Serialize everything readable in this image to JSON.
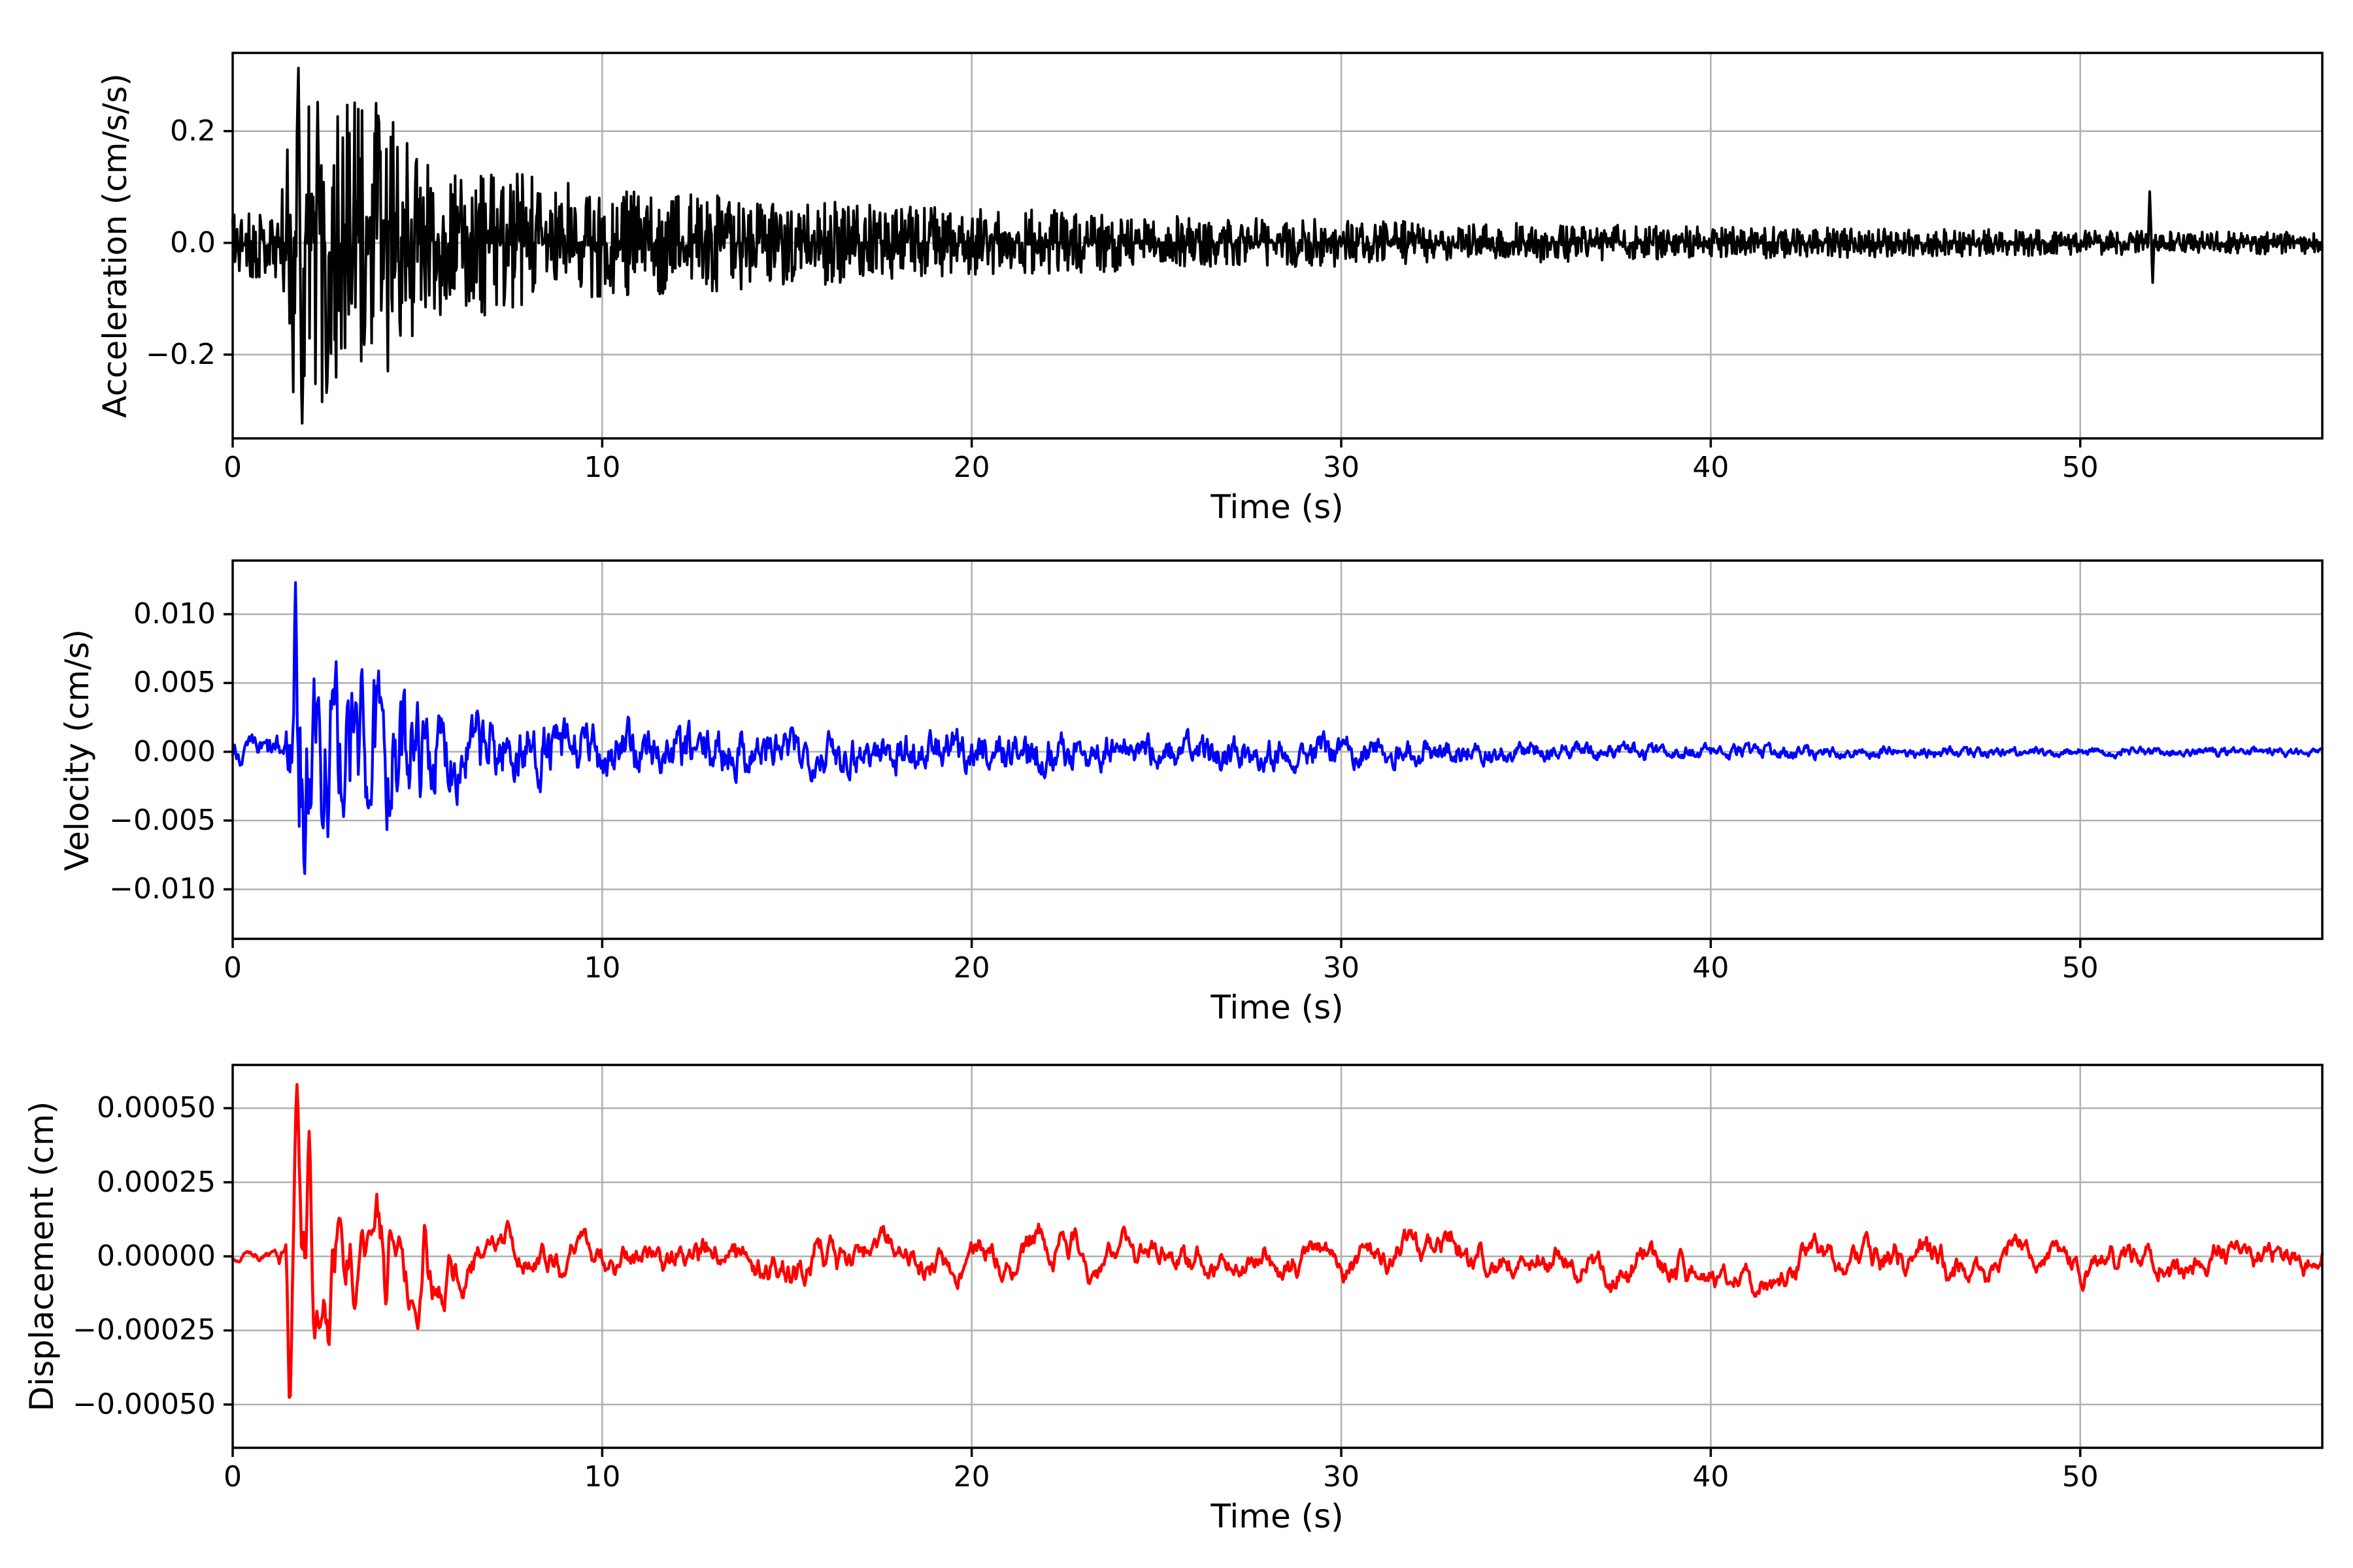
{
  "figure": {
    "background": "#ffffff",
    "grid_color": "#b0b0b0",
    "axes_edge_color": "#000000",
    "n_subplots": 3,
    "kind": "seismogram (acceleration / velocity / displacement vs time)"
  },
  "chart_data": [
    {
      "id": "acceleration",
      "type": "line",
      "xlabel": "Time (s)",
      "ylabel": "Acceleration (cm/s/s)",
      "line_color": "#000000",
      "line_width": 4.0,
      "xlim": [
        0,
        56.55
      ],
      "ylim": [
        -0.35,
        0.34
      ],
      "xticks": [
        0,
        10,
        20,
        30,
        40,
        50
      ],
      "xtick_labels": [
        "0",
        "10",
        "20",
        "30",
        "40",
        "50"
      ],
      "yticks": [
        0.2,
        0.0,
        -0.2
      ],
      "ytick_labels": [
        "0.2",
        "0.0",
        "−0.2"
      ],
      "grid": true,
      "legend": null,
      "description": "High-frequency accelerogram: ambient noise about ±0.06 until 1.4 s, main shock burst peaking +0.30 / −0.33 cm/s/s near 1.8–2.5 s, slow coda decay to about ±0.02 by 56 s, isolated spike +0.09 / −0.07 at 51.9 s",
      "peak": {
        "time": 1.8,
        "max": 0.3,
        "min": -0.33
      },
      "signal": {
        "sample_dt": 0.02,
        "seed": 11,
        "noise": "white",
        "pulse_width": 0.03,
        "pulses": [
          [
            1.78,
            1.0
          ],
          [
            1.88,
            -1.0
          ],
          [
            2.3,
            0.9
          ],
          [
            2.55,
            -0.95
          ],
          [
            3.95,
            0.9
          ]
        ],
        "spike_width": 0.028,
        "spikes": [
          [
            51.88,
            0.092
          ],
          [
            51.96,
            -0.068
          ]
        ],
        "envelope": [
          [
            0,
            0.06
          ],
          [
            1.2,
            0.065
          ],
          [
            1.4,
            0.12
          ],
          [
            1.6,
            0.28
          ],
          [
            1.75,
            0.31
          ],
          [
            1.95,
            0.33
          ],
          [
            2.2,
            0.27
          ],
          [
            2.5,
            0.3
          ],
          [
            2.8,
            0.27
          ],
          [
            3.1,
            0.25
          ],
          [
            3.4,
            0.28
          ],
          [
            3.7,
            0.24
          ],
          [
            4.0,
            0.26
          ],
          [
            4.3,
            0.22
          ],
          [
            4.6,
            0.19
          ],
          [
            5.0,
            0.16
          ],
          [
            5.4,
            0.14
          ],
          [
            5.8,
            0.125
          ],
          [
            6.3,
            0.12
          ],
          [
            6.8,
            0.13
          ],
          [
            7.3,
            0.12
          ],
          [
            7.8,
            0.13
          ],
          [
            8.3,
            0.12
          ],
          [
            8.8,
            0.11
          ],
          [
            9.3,
            0.105
          ],
          [
            10,
            0.1
          ],
          [
            11,
            0.095
          ],
          [
            12,
            0.09
          ],
          [
            13,
            0.088
          ],
          [
            14,
            0.082
          ],
          [
            15,
            0.078
          ],
          [
            16,
            0.075
          ],
          [
            17,
            0.07
          ],
          [
            18,
            0.068
          ],
          [
            19,
            0.065
          ],
          [
            20,
            0.062
          ],
          [
            21,
            0.06
          ],
          [
            22,
            0.06
          ],
          [
            23,
            0.055
          ],
          [
            24,
            0.052
          ],
          [
            25,
            0.05
          ],
          [
            26,
            0.048
          ],
          [
            27,
            0.046
          ],
          [
            28,
            0.045
          ],
          [
            29,
            0.043
          ],
          [
            30,
            0.042
          ],
          [
            31,
            0.04
          ],
          [
            32,
            0.038
          ],
          [
            33,
            0.037
          ],
          [
            34,
            0.036
          ],
          [
            35,
            0.035
          ],
          [
            36,
            0.034
          ],
          [
            37,
            0.033
          ],
          [
            38,
            0.032
          ],
          [
            39,
            0.031
          ],
          [
            40,
            0.03
          ],
          [
            41,
            0.029
          ],
          [
            42,
            0.028
          ],
          [
            43,
            0.027
          ],
          [
            44,
            0.026
          ],
          [
            45,
            0.026
          ],
          [
            46,
            0.025
          ],
          [
            47,
            0.024
          ],
          [
            48,
            0.024
          ],
          [
            49,
            0.023
          ],
          [
            50,
            0.022
          ],
          [
            51,
            0.022
          ],
          [
            52,
            0.021
          ],
          [
            53,
            0.021
          ],
          [
            54,
            0.02
          ],
          [
            55,
            0.02
          ],
          [
            56.55,
            0.019
          ]
        ]
      }
    },
    {
      "id": "velocity",
      "type": "line",
      "xlabel": "Time (s)",
      "ylabel": "Velocity (cm/s)",
      "line_color": "#0000ff",
      "line_width": 4.2,
      "xlim": [
        0,
        56.55
      ],
      "ylim": [
        -0.0136,
        0.0139
      ],
      "xticks": [
        0,
        10,
        20,
        30,
        40,
        50
      ],
      "xtick_labels": [
        "0",
        "10",
        "20",
        "30",
        "40",
        "50"
      ],
      "yticks": [
        0.01,
        0.005,
        0.0,
        -0.005,
        -0.01
      ],
      "ytick_labels": [
        "0.010",
        "0.005",
        "0.000",
        "−0.005",
        "−0.010"
      ],
      "grid": true,
      "legend": null,
      "description": "Integrated velocity trace: quiet ±0.001 until 1.5 s, sharp spike to +0.0123 cm/s at 1.7 s, oscillations to −0.0087 decaying to ±0.002 by 10 s and ±0.0005 by 50 s",
      "peak": {
        "time": 1.7,
        "max": 0.0123,
        "min": -0.0087
      },
      "signal": {
        "sample_dt": 0.025,
        "seed": 7,
        "noise": "ar",
        "ar_a": 0.68,
        "ar_norm": 1.9,
        "pulse_width": 0.05,
        "pulses": [
          [
            1.7,
            1.0
          ],
          [
            1.95,
            -0.83
          ],
          [
            2.2,
            0.55
          ],
          [
            2.45,
            -0.62
          ],
          [
            2.7,
            0.52
          ],
          [
            3.0,
            -0.58
          ],
          [
            3.35,
            0.45
          ],
          [
            3.7,
            -0.5
          ],
          [
            4.05,
            0.45
          ],
          [
            4.45,
            -0.48
          ],
          [
            4.85,
            0.4
          ]
        ],
        "spikes": [],
        "spike_width": 0.03,
        "envelope": [
          [
            0,
            0.0011
          ],
          [
            1.3,
            0.0013
          ],
          [
            1.55,
            0.004
          ],
          [
            1.7,
            0.0123
          ],
          [
            1.85,
            0.011
          ],
          [
            2.0,
            0.0105
          ],
          [
            2.3,
            0.0092
          ],
          [
            2.7,
            0.0085
          ],
          [
            3.1,
            0.008
          ],
          [
            3.5,
            0.0075
          ],
          [
            3.9,
            0.007
          ],
          [
            4.3,
            0.0062
          ],
          [
            4.7,
            0.0055
          ],
          [
            5.1,
            0.0047
          ],
          [
            5.6,
            0.004
          ],
          [
            6.2,
            0.0036
          ],
          [
            7,
            0.0032
          ],
          [
            8,
            0.0029
          ],
          [
            9,
            0.0027
          ],
          [
            10,
            0.0025
          ],
          [
            11,
            0.0024
          ],
          [
            12,
            0.0023
          ],
          [
            13,
            0.0022
          ],
          [
            14,
            0.0022
          ],
          [
            15,
            0.0021
          ],
          [
            16,
            0.002
          ],
          [
            17,
            0.002
          ],
          [
            18,
            0.0019
          ],
          [
            19,
            0.0019
          ],
          [
            20,
            0.0018
          ],
          [
            21,
            0.0019
          ],
          [
            22,
            0.002
          ],
          [
            23,
            0.0017
          ],
          [
            24,
            0.0016
          ],
          [
            25,
            0.0017
          ],
          [
            26,
            0.0016
          ],
          [
            27,
            0.0015
          ],
          [
            28,
            0.0016
          ],
          [
            29,
            0.0014
          ],
          [
            30,
            0.0014
          ],
          [
            31,
            0.0013
          ],
          [
            32,
            0.0012
          ],
          [
            33,
            0.0011
          ],
          [
            34,
            0.001
          ],
          [
            35,
            0.0009
          ],
          [
            36,
            0.00085
          ],
          [
            37,
            0.0008
          ],
          [
            38,
            0.00075
          ],
          [
            39,
            0.0007
          ],
          [
            40,
            0.00065
          ],
          [
            42,
            0.0006
          ],
          [
            44,
            0.00055
          ],
          [
            46,
            0.0005
          ],
          [
            48,
            0.00048
          ],
          [
            50,
            0.00045
          ],
          [
            52,
            0.00043
          ],
          [
            54,
            0.00042
          ],
          [
            56.55,
            0.0004
          ]
        ]
      }
    },
    {
      "id": "displacement",
      "type": "line",
      "xlabel": "Time (s)",
      "ylabel": "Displacement (cm)",
      "line_color": "#ff0000",
      "line_width": 4.6,
      "xlim": [
        0,
        56.55
      ],
      "ylim": [
        -0.000646,
        0.000646
      ],
      "xticks": [
        0,
        10,
        20,
        30,
        40,
        50
      ],
      "xtick_labels": [
        "0",
        "10",
        "20",
        "30",
        "40",
        "50"
      ],
      "yticks": [
        0.0005,
        0.00025,
        0.0,
        -0.00025,
        -0.0005
      ],
      "ytick_labels": [
        "0.00050",
        "0.00025",
        "0.00000",
        "−0.00025",
        "−0.00050"
      ],
      "grid": true,
      "legend": null,
      "description": "Doubly-integrated displacement: near zero until 1.4 s, sharp dip −0.00058 cm at 1.55 s then peak +0.00058 cm at 1.75 s, oscillation settling to slow wander of about ±0.0001–0.0002 cm for the rest of the record (bump +0.00021 near 15.9 s, dips near −0.0002 around 33 s and 45–52 s)",
      "peak": {
        "time": 1.75,
        "max": 0.00058,
        "min": -0.00058
      },
      "signal": {
        "sample_dt": 0.03,
        "seed": 3,
        "noise": "ar2",
        "pulse_width": 0.07,
        "pulses": [
          [
            1.54,
            -1.0
          ],
          [
            1.74,
            1.0
          ],
          [
            2.07,
            0.8
          ],
          [
            2.35,
            -0.5
          ],
          [
            2.6,
            -0.72
          ],
          [
            2.9,
            0.35
          ],
          [
            3.3,
            -0.55
          ],
          [
            3.7,
            0.3
          ],
          [
            4.15,
            -0.6
          ],
          [
            4.5,
            0.25
          ],
          [
            4.85,
            -0.62
          ],
          [
            5.2,
            0.5
          ]
        ],
        "spikes": [],
        "spike_width": 0.03,
        "envelope": [
          [
            0,
            4e-05
          ],
          [
            1.0,
            5e-05
          ],
          [
            1.35,
            0.0001
          ],
          [
            1.5,
            0.00045
          ],
          [
            1.6,
            0.00058
          ],
          [
            1.85,
            0.00058
          ],
          [
            2.1,
            0.00052
          ],
          [
            2.4,
            0.00048
          ],
          [
            2.7,
            0.0004
          ],
          [
            3.0,
            0.00035
          ],
          [
            3.5,
            0.0003
          ],
          [
            4.0,
            0.00028
          ],
          [
            4.6,
            0.00026
          ],
          [
            5.2,
            0.00022
          ],
          [
            6,
            0.00018
          ],
          [
            7,
            0.00015
          ],
          [
            8,
            0.00014
          ],
          [
            9,
            0.000135
          ],
          [
            10,
            0.00013
          ],
          [
            12,
            0.00013
          ],
          [
            14,
            0.00013
          ],
          [
            15.8,
            0.00017
          ],
          [
            17,
            0.00013
          ],
          [
            18,
            0.00012
          ],
          [
            20,
            0.00013
          ],
          [
            22,
            0.00015
          ],
          [
            24,
            0.00012
          ],
          [
            26,
            0.00012
          ],
          [
            28,
            0.00012
          ],
          [
            30,
            0.00012
          ],
          [
            32,
            0.00013
          ],
          [
            33.5,
            0.00015
          ],
          [
            35,
            0.00012
          ],
          [
            37,
            0.00013
          ],
          [
            38.5,
            0.00015
          ],
          [
            40,
            0.00012
          ],
          [
            41.5,
            0.00013
          ],
          [
            43,
            0.00014
          ],
          [
            44.5,
            0.00014
          ],
          [
            46,
            0.00015
          ],
          [
            47.5,
            0.00013
          ],
          [
            49,
            0.00012
          ],
          [
            50.5,
            0.00011
          ],
          [
            52,
            0.00013
          ],
          [
            53.5,
            0.00011
          ],
          [
            55,
            0.00011
          ],
          [
            56.55,
            0.0001
          ]
        ]
      }
    }
  ]
}
